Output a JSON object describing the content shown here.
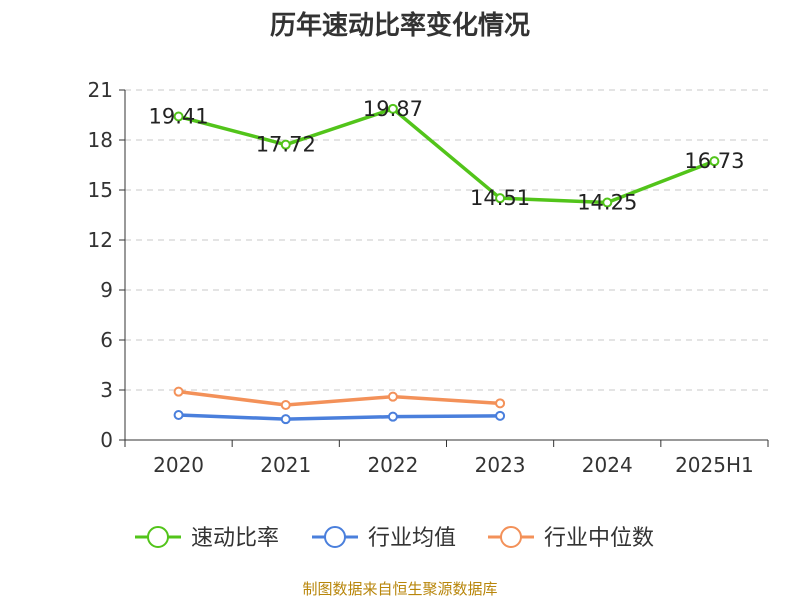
{
  "chart_data": {
    "type": "line",
    "title": "历年速动比率变化情况",
    "categories": [
      "2020",
      "2021",
      "2022",
      "2023",
      "2024",
      "2025H1"
    ],
    "ylim": [
      0,
      21
    ],
    "yticks": [
      "0",
      "3",
      "6",
      "9",
      "12",
      "15",
      "18",
      "21"
    ],
    "grid": true,
    "legend_position": "bottom",
    "series": [
      {
        "name": "速动比率",
        "color": "#52c41a",
        "values": [
          19.41,
          17.72,
          19.87,
          14.51,
          14.25,
          16.73
        ],
        "labels": [
          "19.41",
          "17.72",
          "19.87",
          "14.51",
          "14.25",
          "16.73"
        ]
      },
      {
        "name": "行业均值",
        "color": "#4a7fdc",
        "values": [
          1.5,
          1.25,
          1.4,
          1.45,
          null,
          null
        ]
      },
      {
        "name": "行业中位数",
        "color": "#f39159",
        "values": [
          2.9,
          2.1,
          2.6,
          2.2,
          null,
          null
        ]
      }
    ]
  },
  "source_text": "制图数据来自恒生聚源数据库"
}
